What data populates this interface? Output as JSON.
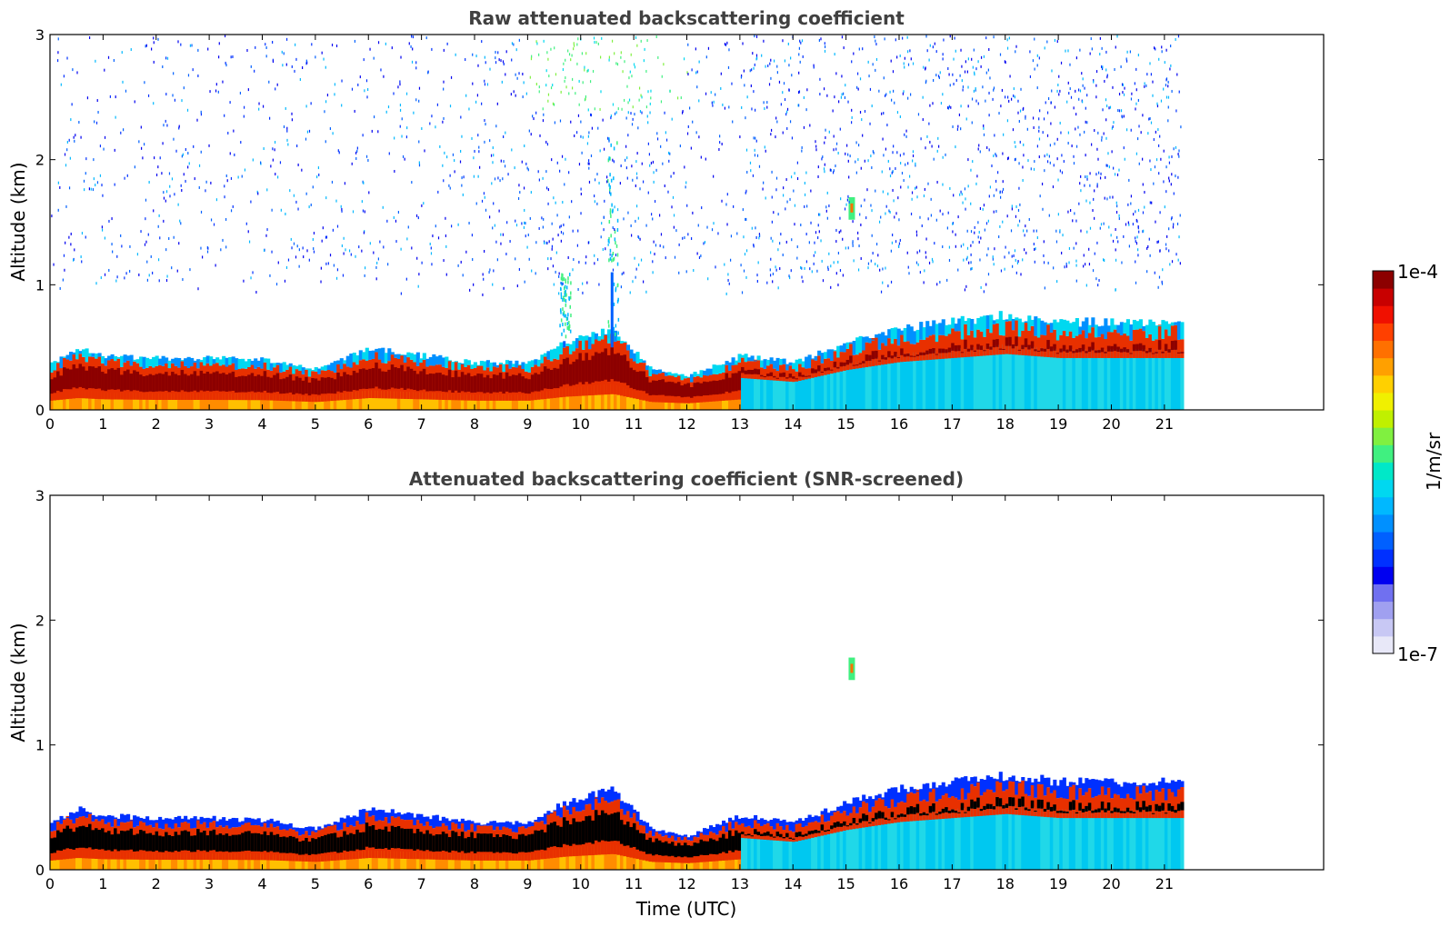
{
  "chart_data": [
    {
      "type": "heatmap",
      "title": "Raw attenuated backscattering coefficient",
      "xlabel": "",
      "ylabel": "Altitude (km)",
      "xlim": [
        0,
        24
      ],
      "ylim": [
        0,
        3
      ],
      "x_ticks": [
        "0",
        "1",
        "2",
        "3",
        "4",
        "5",
        "6",
        "7",
        "8",
        "9",
        "10",
        "11",
        "12",
        "13",
        "14",
        "15",
        "16",
        "17",
        "18",
        "19",
        "20",
        "21"
      ],
      "y_ticks": [
        "0",
        "1",
        "2",
        "3"
      ],
      "data_end_time": 21.3,
      "screened": false,
      "layer_top_km": [
        [
          0,
          0.35
        ],
        [
          0.5,
          0.45
        ],
        [
          1,
          0.4
        ],
        [
          2,
          0.38
        ],
        [
          3,
          0.38
        ],
        [
          4,
          0.37
        ],
        [
          5,
          0.3
        ],
        [
          6,
          0.45
        ],
        [
          7,
          0.4
        ],
        [
          8,
          0.35
        ],
        [
          9,
          0.35
        ],
        [
          9.7,
          0.5
        ],
        [
          10.6,
          0.6
        ],
        [
          11.3,
          0.3
        ],
        [
          12,
          0.25
        ],
        [
          13,
          0.4
        ],
        [
          14,
          0.35
        ],
        [
          15,
          0.5
        ],
        [
          16,
          0.6
        ],
        [
          17,
          0.65
        ],
        [
          18,
          0.7
        ],
        [
          19,
          0.65
        ],
        [
          20,
          0.65
        ],
        [
          21,
          0.65
        ],
        [
          21.3,
          0.65
        ]
      ],
      "features": [
        {
          "name": "plume",
          "time": 9.7,
          "top_km": 1.1
        },
        {
          "name": "plume",
          "time": 10.6,
          "top_km": 2.2
        },
        {
          "name": "cloud",
          "time": 15.1,
          "altitude_km": 1.6
        }
      ]
    },
    {
      "type": "heatmap",
      "title": "Attenuated backscattering coefficient (SNR-screened)",
      "xlabel": "Time (UTC)",
      "ylabel": "Altitude (km)",
      "xlim": [
        0,
        24
      ],
      "ylim": [
        0,
        3
      ],
      "x_ticks": [
        "0",
        "1",
        "2",
        "3",
        "4",
        "5",
        "6",
        "7",
        "8",
        "9",
        "10",
        "11",
        "12",
        "13",
        "14",
        "15",
        "16",
        "17",
        "18",
        "19",
        "20",
        "21"
      ],
      "y_ticks": [
        "0",
        "1",
        "2",
        "3"
      ],
      "data_end_time": 21.3,
      "screened": true,
      "layer_top_km": [
        [
          0,
          0.35
        ],
        [
          0.5,
          0.45
        ],
        [
          1,
          0.4
        ],
        [
          2,
          0.38
        ],
        [
          3,
          0.38
        ],
        [
          4,
          0.37
        ],
        [
          5,
          0.3
        ],
        [
          6,
          0.45
        ],
        [
          7,
          0.4
        ],
        [
          8,
          0.35
        ],
        [
          9,
          0.35
        ],
        [
          9.7,
          0.5
        ],
        [
          10.6,
          0.6
        ],
        [
          11.3,
          0.3
        ],
        [
          12,
          0.25
        ],
        [
          13,
          0.4
        ],
        [
          14,
          0.35
        ],
        [
          15,
          0.5
        ],
        [
          16,
          0.6
        ],
        [
          17,
          0.65
        ],
        [
          18,
          0.7
        ],
        [
          19,
          0.65
        ],
        [
          20,
          0.65
        ],
        [
          21,
          0.65
        ],
        [
          21.3,
          0.65
        ]
      ],
      "features": [
        {
          "name": "cloud",
          "time": 15.1,
          "altitude_km": 1.6
        }
      ]
    }
  ],
  "colorbar": {
    "label": "1/m/sr",
    "max_label": "1e-4",
    "min_label": "1e-7",
    "colors": [
      "#e8e8f8",
      "#c8c8f4",
      "#a0a0f0",
      "#7070f0",
      "#0000f0",
      "#0030ff",
      "#0060ff",
      "#0090ff",
      "#00b8ff",
      "#00d8f0",
      "#00e8c8",
      "#40f080",
      "#80f040",
      "#c0f000",
      "#f0f000",
      "#ffd000",
      "#ffa000",
      "#ff7000",
      "#ff4000",
      "#f01000",
      "#c80000",
      "#8c0000"
    ]
  }
}
